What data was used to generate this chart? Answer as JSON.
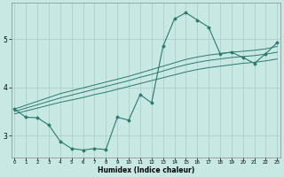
{
  "xlabel": "Humidex (Indice chaleur)",
  "x_ticks": [
    0,
    1,
    2,
    3,
    4,
    5,
    6,
    7,
    8,
    9,
    10,
    11,
    12,
    13,
    14,
    15,
    16,
    17,
    18,
    19,
    20,
    21,
    22,
    23
  ],
  "y_ticks": [
    3,
    4,
    5
  ],
  "ylim": [
    2.55,
    5.75
  ],
  "xlim": [
    -0.3,
    23.3
  ],
  "bg_color": "#c8e8e4",
  "line_color": "#2a7a6e",
  "grid_color": "#a8ccca",
  "main": [
    3.55,
    3.38,
    3.37,
    3.22,
    2.88,
    2.73,
    2.7,
    2.73,
    2.71,
    3.38,
    3.32,
    3.85,
    3.68,
    4.85,
    5.42,
    5.55,
    5.4,
    5.25,
    4.7,
    4.73,
    4.62,
    4.5,
    4.7,
    4.93
  ],
  "line1": [
    3.55,
    3.63,
    3.71,
    3.79,
    3.87,
    3.93,
    3.99,
    4.05,
    4.11,
    4.17,
    4.23,
    4.3,
    4.37,
    4.44,
    4.51,
    4.58,
    4.63,
    4.67,
    4.7,
    4.73,
    4.75,
    4.77,
    4.8,
    4.85
  ],
  "line2": [
    3.5,
    3.57,
    3.64,
    3.71,
    3.78,
    3.84,
    3.9,
    3.96,
    4.02,
    4.08,
    4.14,
    4.21,
    4.27,
    4.34,
    4.41,
    4.47,
    4.52,
    4.56,
    4.59,
    4.62,
    4.64,
    4.66,
    4.69,
    4.73
  ],
  "line3": [
    3.45,
    3.51,
    3.57,
    3.63,
    3.69,
    3.74,
    3.79,
    3.85,
    3.9,
    3.96,
    4.02,
    4.08,
    4.14,
    4.2,
    4.26,
    4.32,
    4.37,
    4.41,
    4.44,
    4.47,
    4.5,
    4.52,
    4.55,
    4.59
  ]
}
